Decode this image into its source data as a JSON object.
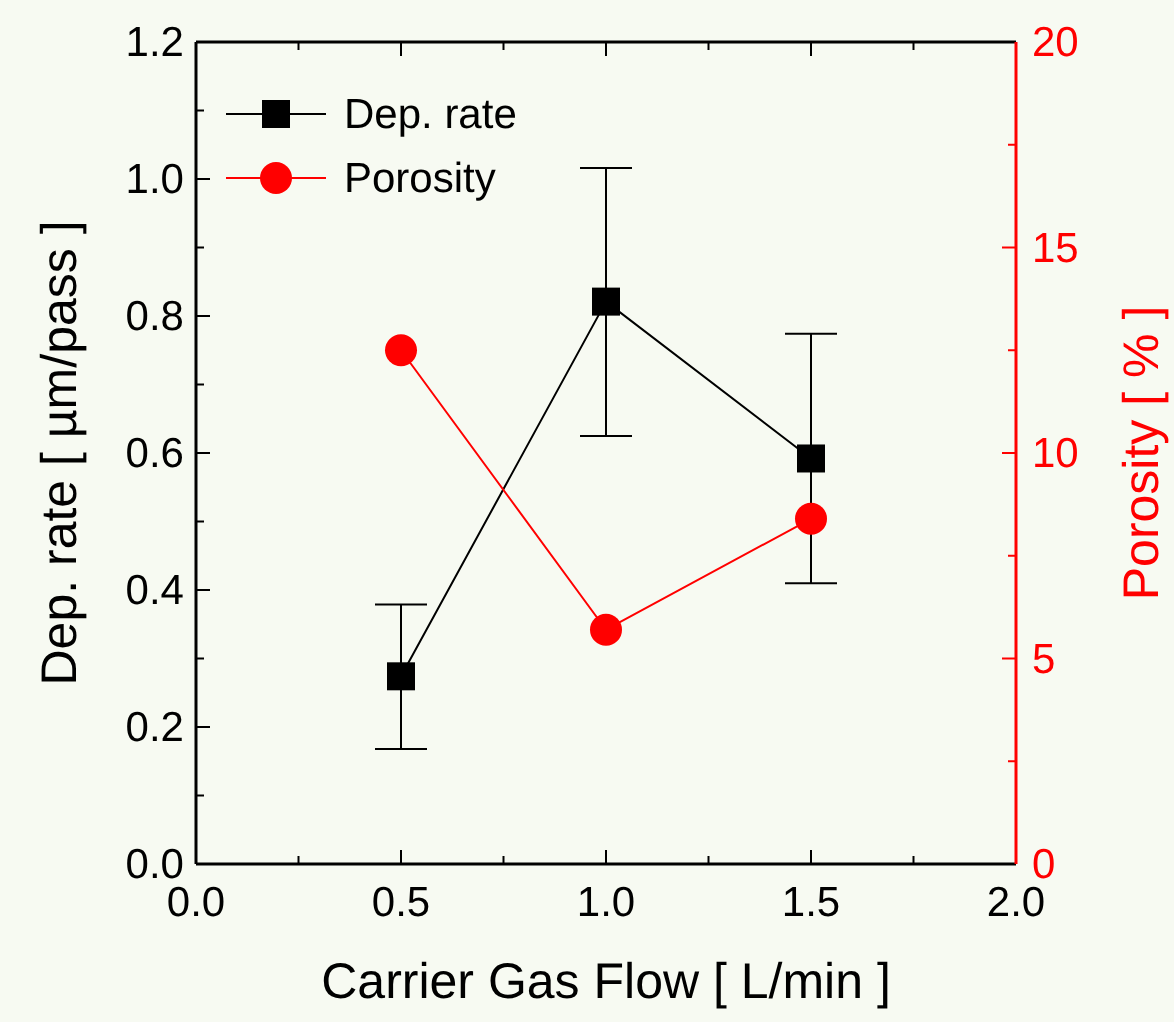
{
  "chart_data": {
    "type": "line",
    "xlabel": "Carrier Gas Flow [ L/min ]",
    "ylabel": "Dep. rate [ µm/pass ]",
    "y2label": "Porosity [ % ]",
    "x": [
      0.5,
      1.0,
      1.5
    ],
    "series": [
      {
        "name": "Dep. rate",
        "color": "#000000",
        "marker": "square",
        "values": [
          0.274,
          0.821,
          0.592
        ],
        "errors": [
          [
            0.168,
            0.379
          ],
          [
            0.625,
            1.016
          ],
          [
            0.41,
            0.774
          ]
        ]
      },
      {
        "name": "Porosity",
        "color": "#ff0000",
        "marker": "circle",
        "axis": "y2",
        "values": [
          12.5,
          5.7,
          8.4
        ]
      }
    ],
    "xlim": [
      0,
      2
    ],
    "xticks": [
      {
        "value": 0,
        "label": "0.0"
      },
      {
        "value": 0.25,
        "label": null
      },
      0.5,
      {
        "value": 0.75,
        "label": null
      },
      {
        "value": 1,
        "label": "1.0"
      },
      {
        "value": 1.25,
        "label": null
      },
      1.5,
      {
        "value": 1.75,
        "label": null
      },
      {
        "value": 2,
        "label": "2.0"
      }
    ],
    "ylim": [
      0,
      1.2
    ],
    "yticks": [
      {
        "value": 0,
        "label": "0.0"
      },
      {
        "value": 0.1,
        "label": null
      },
      0.2,
      {
        "value": 0.3,
        "label": null
      },
      0.4,
      {
        "value": 0.5,
        "label": null
      },
      0.6,
      {
        "value": 0.7,
        "label": null
      },
      0.8,
      {
        "value": 0.9,
        "label": null
      },
      {
        "value": 1,
        "label": "1.0"
      },
      {
        "value": 1.1,
        "label": null
      },
      1.2
    ],
    "y2lim": [
      0,
      20
    ],
    "y2ticks": [
      0,
      {
        "value": 2.5,
        "label": null
      },
      5,
      {
        "value": 7.5,
        "label": null
      },
      10,
      {
        "value": 12.5,
        "label": null
      },
      15,
      {
        "value": 17.5,
        "label": null
      },
      20
    ],
    "legend": "top left",
    "grid": false
  }
}
